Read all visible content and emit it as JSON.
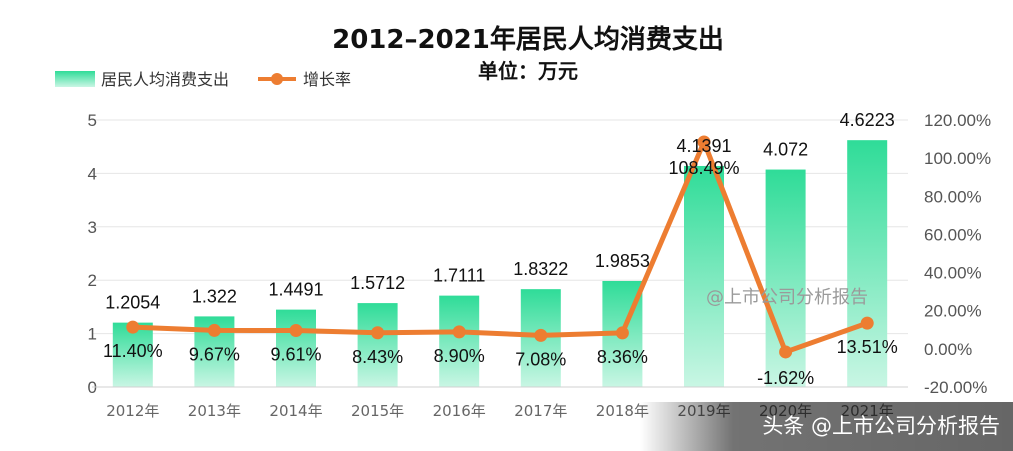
{
  "chart_data": {
    "type": "bar",
    "title": "2012–2021年居民人均消费支出",
    "subtitle": "单位：万元",
    "categories": [
      "2012年",
      "2013年",
      "2014年",
      "2015年",
      "2016年",
      "2017年",
      "2018年",
      "2019年",
      "2020年",
      "2021年"
    ],
    "series": [
      {
        "name": "居民人均消费支出",
        "type": "bar",
        "axis": "left",
        "values": [
          1.2054,
          1.322,
          1.4491,
          1.5712,
          1.7111,
          1.8322,
          1.9853,
          4.1391,
          4.072,
          4.6223
        ],
        "labels": [
          "1.2054",
          "1.322",
          "1.4491",
          "1.5712",
          "1.7111",
          "1.8322",
          "1.9853",
          "4.1391",
          "4.072",
          "4.6223"
        ],
        "color": "#3ee0a0"
      },
      {
        "name": "增长率",
        "type": "line",
        "axis": "right",
        "values": [
          11.4,
          9.67,
          9.61,
          8.43,
          8.9,
          7.08,
          8.36,
          108.49,
          -1.62,
          13.51
        ],
        "labels": [
          "11.40%",
          "9.67%",
          "9.61%",
          "8.43%",
          "8.90%",
          "7.08%",
          "8.36%",
          "108.49%",
          "-1.62%",
          "13.51%"
        ],
        "color": "#ed7d31"
      }
    ],
    "y_left": {
      "ylim": [
        0,
        5
      ],
      "ticks": [
        "0",
        "1",
        "2",
        "3",
        "4",
        "5"
      ]
    },
    "y_right": {
      "ylim": [
        -20,
        120
      ],
      "ticks": [
        "-20.00%",
        "0.00%",
        "20.00%",
        "40.00%",
        "60.00%",
        "80.00%",
        "100.00%",
        "120.00%"
      ]
    },
    "grid": true,
    "legend_position": "top-left"
  },
  "watermarks": [
    "@上市公司分析报告",
    "头条 @上市公司分析报告"
  ]
}
